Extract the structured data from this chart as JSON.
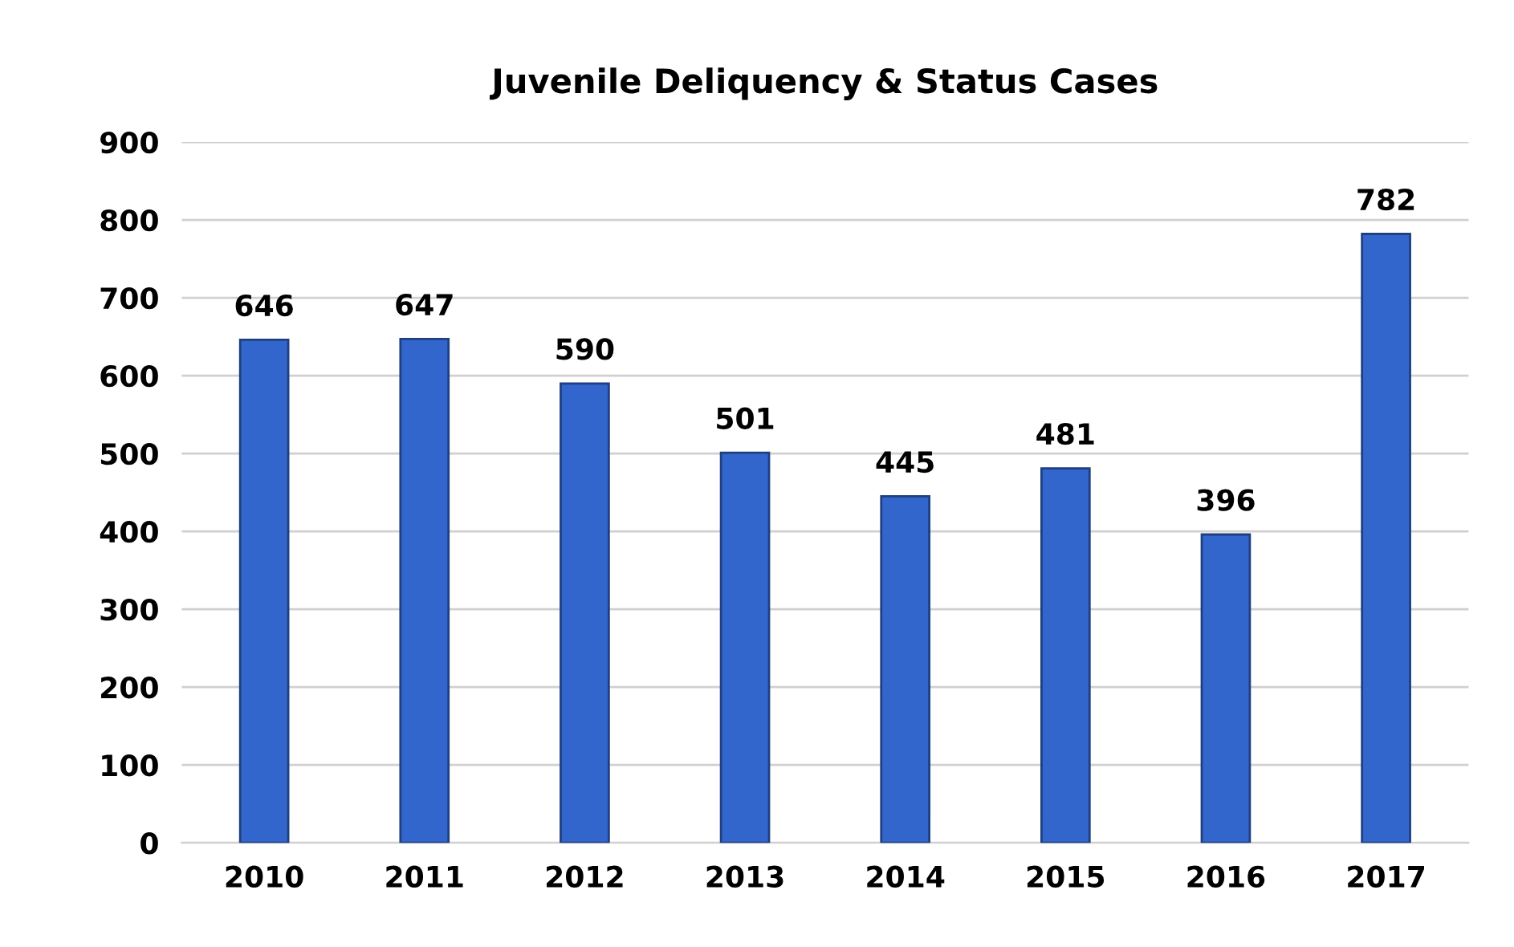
{
  "chart_data": {
    "type": "bar",
    "title": "Juvenile Deliquency & Status Cases",
    "categories": [
      "2010",
      "2011",
      "2012",
      "2013",
      "2014",
      "2015",
      "2016",
      "2017"
    ],
    "values": [
      646,
      647,
      590,
      501,
      445,
      481,
      396,
      782
    ],
    "color": "#3366cc",
    "ylim": [
      0,
      900
    ],
    "yticks": [
      0,
      100,
      200,
      300,
      400,
      500,
      600,
      700,
      800,
      900
    ],
    "grid": "y",
    "data_labels": true
  }
}
